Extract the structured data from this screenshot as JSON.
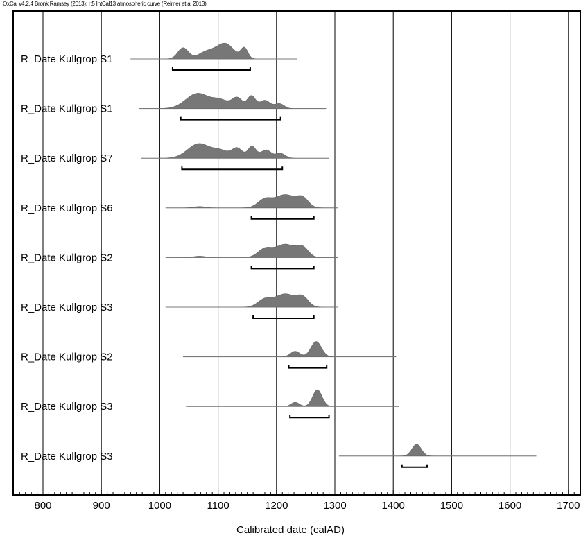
{
  "header": "OxCal v4.2.4 Bronk Ramsey (2013); r:5 IntCal13 atmospheric curve (Reimer et al 2013)",
  "chart_data": {
    "type": "area",
    "xlabel": "Calibrated date (calAD)",
    "xlim": [
      750,
      1710
    ],
    "xticks": [
      800,
      900,
      1000,
      1100,
      1200,
      1300,
      1400,
      1500,
      1600,
      1700
    ],
    "grid": true,
    "series": [
      {
        "name": "R_Date Kullgrop S1",
        "range": [
          950,
          1235
        ],
        "hpd": [
          1022,
          1155
        ],
        "peaks": [
          [
            1040,
            16,
            9
          ],
          [
            1080,
            10,
            14
          ],
          [
            1112,
            22,
            15
          ],
          [
            1145,
            15,
            6
          ]
        ]
      },
      {
        "name": "R_Date Kullgrop S1",
        "range": [
          965,
          1285
        ],
        "hpd": [
          1036,
          1207
        ],
        "peaks": [
          [
            1065,
            22,
            20
          ],
          [
            1105,
            11,
            14
          ],
          [
            1133,
            15,
            9
          ],
          [
            1157,
            18,
            7
          ],
          [
            1180,
            12,
            9
          ],
          [
            1205,
            7,
            8
          ]
        ]
      },
      {
        "name": "R_Date Kullgrop S7",
        "range": [
          968,
          1290
        ],
        "hpd": [
          1038,
          1210
        ],
        "peaks": [
          [
            1067,
            21,
            19
          ],
          [
            1105,
            10,
            14
          ],
          [
            1133,
            14,
            9
          ],
          [
            1158,
            17,
            7
          ],
          [
            1182,
            12,
            9
          ],
          [
            1207,
            7,
            8
          ]
        ]
      },
      {
        "name": "R_Date Kullgrop S6",
        "range": [
          1010,
          1305
        ],
        "hpd": [
          1157,
          1264
        ],
        "peaks": [
          [
            1068,
            2,
            10
          ],
          [
            1180,
            12,
            12
          ],
          [
            1215,
            19,
            17
          ],
          [
            1245,
            13,
            10
          ]
        ]
      },
      {
        "name": "R_Date Kullgrop S2",
        "range": [
          1010,
          1305
        ],
        "hpd": [
          1157,
          1264
        ],
        "peaks": [
          [
            1068,
            2,
            10
          ],
          [
            1180,
            12,
            12
          ],
          [
            1215,
            19,
            17
          ],
          [
            1245,
            13,
            10
          ]
        ]
      },
      {
        "name": "R_Date Kullgrop S3",
        "range": [
          1010,
          1305
        ],
        "hpd": [
          1160,
          1264
        ],
        "peaks": [
          [
            1180,
            11,
            12
          ],
          [
            1215,
            19,
            17
          ],
          [
            1245,
            13,
            10
          ]
        ]
      },
      {
        "name": "R_Date Kullgrop S2",
        "range": [
          1040,
          1405
        ],
        "hpd": [
          1221,
          1286
        ],
        "peaks": [
          [
            1232,
            8,
            8
          ],
          [
            1268,
            22,
            9
          ]
        ]
      },
      {
        "name": "R_Date Kullgrop S3",
        "range": [
          1045,
          1410
        ],
        "hpd": [
          1223,
          1290
        ],
        "peaks": [
          [
            1232,
            6,
            7
          ],
          [
            1270,
            24,
            8
          ]
        ]
      },
      {
        "name": "R_Date Kullgrop S3",
        "range": [
          1307,
          1645
        ],
        "hpd": [
          1415,
          1458
        ],
        "peaks": [
          [
            1440,
            17,
            8
          ]
        ]
      }
    ]
  }
}
